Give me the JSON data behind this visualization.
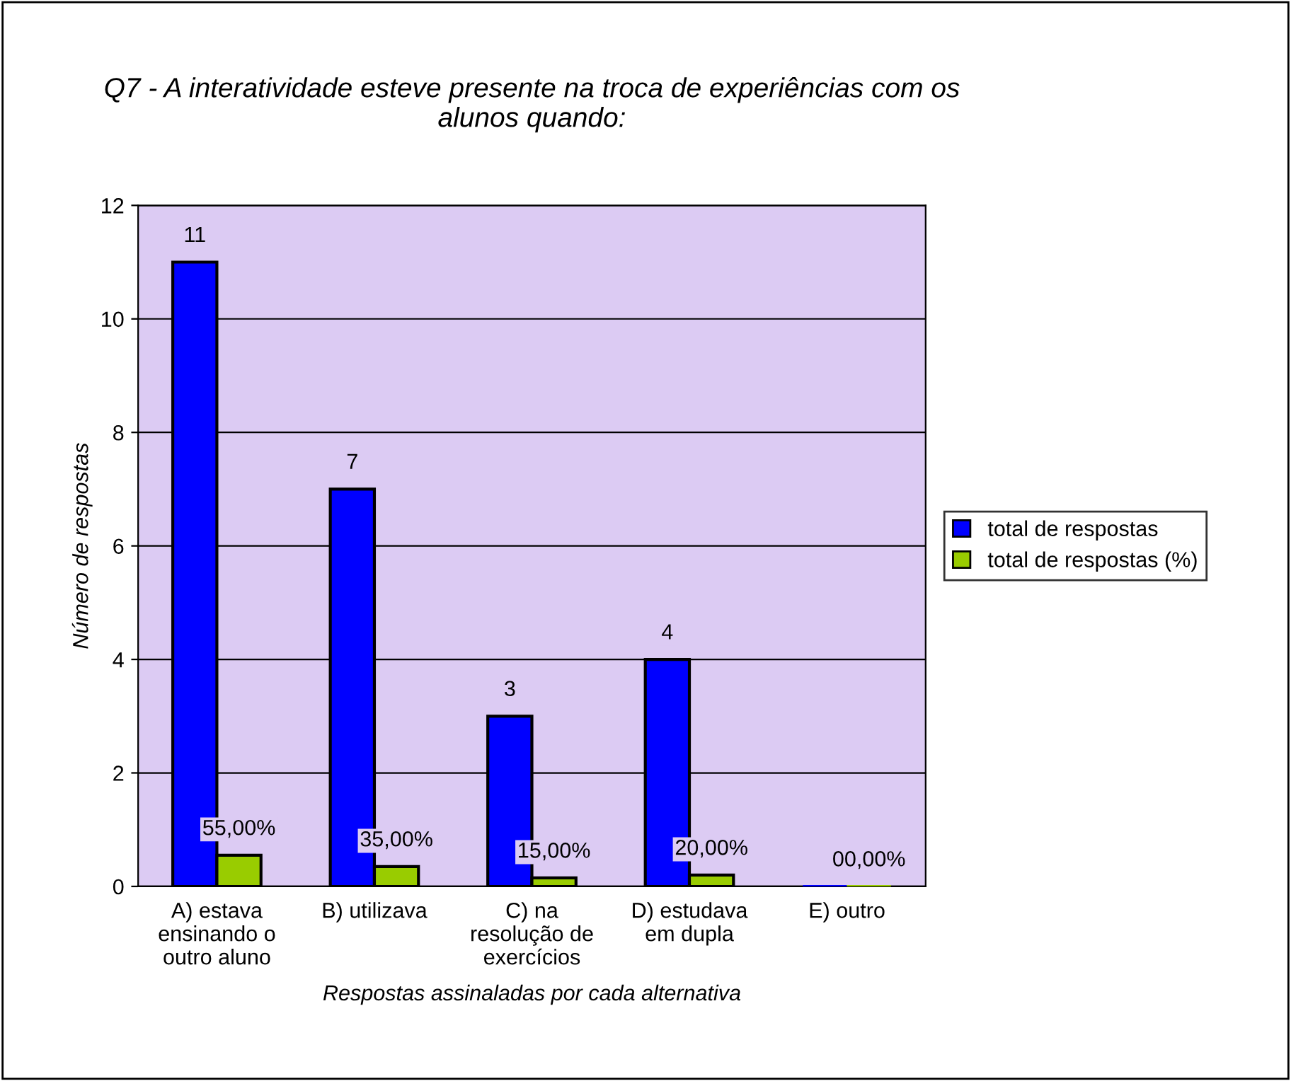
{
  "chart_data": {
    "type": "bar",
    "title": "Q7 - A interatividade esteve presente na troca de experiências com os\nalunos quando:",
    "xlabel": "Respostas assinaladas por cada alternativa",
    "ylabel": "Número de respostas",
    "categories": [
      "A) estava\nensinando o\noutro aluno",
      "B) utilizava",
      "C) na\nresolução de\nexercícios",
      "D) estudava\nem dupla",
      "E) outro"
    ],
    "series": [
      {
        "name": "total de respostas",
        "color": "#0000ff",
        "values": [
          11,
          7,
          3,
          4,
          0
        ],
        "value_labels": [
          "11",
          "7",
          "3",
          "4",
          null
        ]
      },
      {
        "name": "total de respostas (%)",
        "color": "#99cc00",
        "values": [
          0.55,
          0.35,
          0.15,
          0.2,
          0
        ],
        "value_labels": [
          "55,00%",
          "35,00%",
          "15,00%",
          "20,00%",
          "00,00%"
        ]
      }
    ],
    "ylim": [
      0,
      12
    ],
    "yticks": [
      0,
      2,
      4,
      6,
      8,
      10,
      12
    ],
    "grid": "y",
    "legend": "right"
  }
}
